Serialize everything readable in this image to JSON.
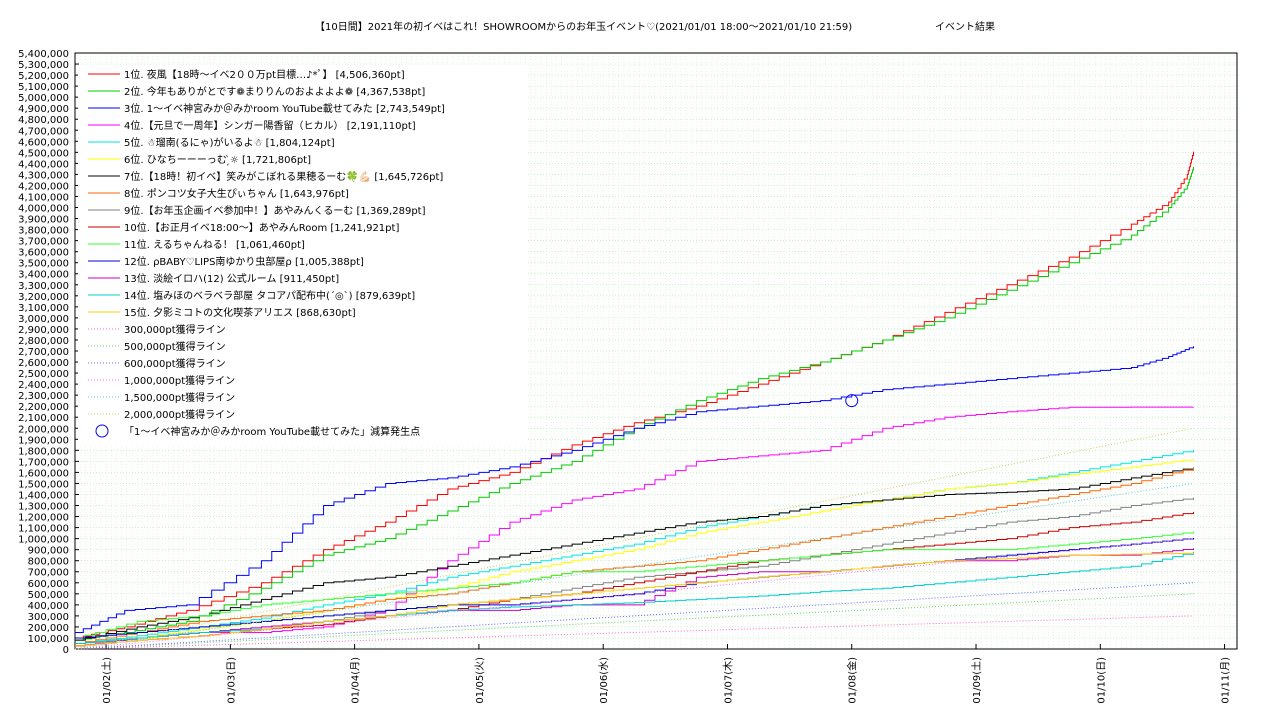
{
  "chart_data": {
    "type": "line",
    "title": "【10日間】2021年の初イベはこれ！SHOWROOMからのお年玉イベント♡(2021/01/01 18:00〜2021/01/10 21:59)",
    "subtitle": "イベント結果",
    "ylim": [
      0,
      5400000
    ],
    "yticks": [
      "0",
      "100,000",
      "200,000",
      "300,000",
      "400,000",
      "500,000",
      "600,000",
      "700,000",
      "800,000",
      "900,000",
      "1,000,000",
      "1,100,000",
      "1,200,000",
      "1,300,000",
      "1,400,000",
      "1,500,000",
      "1,600,000",
      "1,700,000",
      "1,800,000",
      "1,900,000",
      "2,000,000",
      "2,100,000",
      "2,200,000",
      "2,300,000",
      "2,400,000",
      "2,500,000",
      "2,600,000",
      "2,700,000",
      "2,800,000",
      "2,900,000",
      "3,000,000",
      "3,100,000",
      "3,200,000",
      "3,300,000",
      "3,400,000",
      "3,500,000",
      "3,600,000",
      "3,700,000",
      "3,800,000",
      "3,900,000",
      "4,000,000",
      "4,100,000",
      "4,200,000",
      "4,300,000",
      "4,400,000",
      "4,500,000",
      "4,600,000",
      "4,700,000",
      "4,800,000",
      "4,900,000",
      "5,000,000",
      "5,100,000",
      "5,200,000",
      "5,300,000",
      "5,400,000"
    ],
    "xticks": [
      "01/02(土)",
      "01/03(日)",
      "01/04(月)",
      "01/05(火)",
      "01/06(水)",
      "01/07(木)",
      "01/08(金)",
      "01/09(土)",
      "01/10(日)",
      "01/11(月)"
    ],
    "grid": true,
    "legend_position": "top-left",
    "series": [
      {
        "name": "1位. 夜風【18時〜イベ2００万pt目標…♪*ﾟ】 [4,506,360pt]",
        "color": "#ff0000",
        "x": [
          0,
          0.4,
          0.9,
          1.5,
          2.0,
          2.5,
          3.0,
          3.5,
          4.0,
          4.5,
          5.0,
          5.5,
          6.0,
          6.5,
          7.0,
          7.5,
          8.0,
          8.5,
          8.8,
          8.95,
          9.0
        ],
        "y": [
          100000,
          200000,
          350000,
          600000,
          900000,
          1150000,
          1450000,
          1600000,
          1850000,
          2050000,
          2200000,
          2400000,
          2600000,
          2800000,
          3050000,
          3300000,
          3550000,
          3850000,
          4050000,
          4300000,
          4506360
        ]
      },
      {
        "name": "2位. 今年もありがとです❁まりりんのおよよよよ❁ [4,367,538pt]",
        "color": "#00cc00",
        "x": [
          0,
          0.4,
          0.9,
          1.5,
          2.0,
          2.5,
          3.0,
          3.5,
          4.0,
          4.5,
          5.0,
          5.5,
          6.0,
          6.5,
          7.0,
          7.5,
          8.0,
          8.5,
          8.8,
          8.95,
          9.0
        ],
        "y": [
          80000,
          150000,
          250000,
          550000,
          850000,
          1000000,
          1250000,
          1500000,
          1700000,
          2000000,
          2250000,
          2450000,
          2600000,
          2800000,
          3000000,
          3250000,
          3500000,
          3750000,
          4000000,
          4200000,
          4367538
        ]
      },
      {
        "name": "3位. 1〜イベ神宮みか＠みかroom YouTube載せてみた [2,743,549pt]",
        "color": "#0000ff",
        "x": [
          0,
          0.4,
          0.9,
          1.5,
          2.0,
          2.5,
          3.0,
          3.5,
          4.0,
          4.5,
          5.0,
          5.5,
          6.0,
          6.5,
          7.0,
          7.5,
          8.0,
          8.5,
          8.8,
          9.0
        ],
        "y": [
          150000,
          350000,
          400000,
          800000,
          1300000,
          1500000,
          1550000,
          1650000,
          1800000,
          2000000,
          2150000,
          2200000,
          2250000,
          2350000,
          2400000,
          2450000,
          2500000,
          2550000,
          2650000,
          2743549
        ]
      },
      {
        "name": "4位.【元旦で一周年】シンガー陽香留（ヒカル） [2,191,110pt]",
        "color": "#ff00ff",
        "x": [
          0,
          0.5,
          1.0,
          1.5,
          2.0,
          2.5,
          3.0,
          3.5,
          4.0,
          4.5,
          5.0,
          5.5,
          6.0,
          6.5,
          7.0,
          7.5,
          8.0,
          8.5,
          9.0
        ],
        "y": [
          50000,
          100000,
          150000,
          150000,
          200000,
          350000,
          800000,
          1150000,
          1350000,
          1450000,
          1700000,
          1750000,
          1800000,
          2000000,
          2100000,
          2150000,
          2190000,
          2191000,
          2191110
        ]
      },
      {
        "name": "5位. ☃瑠南(るにゃ)がいるよ☃ [1,804,124pt]",
        "color": "#00e5e5",
        "x": [
          0,
          0.5,
          1.0,
          1.5,
          2.0,
          2.5,
          3.0,
          3.5,
          4.0,
          4.5,
          5.0,
          5.5,
          6.0,
          6.5,
          7.0,
          7.5,
          8.0,
          8.5,
          9.0
        ],
        "y": [
          50000,
          120000,
          200000,
          280000,
          400000,
          500000,
          650000,
          750000,
          850000,
          950000,
          1100000,
          1200000,
          1300000,
          1350000,
          1450000,
          1500000,
          1600000,
          1700000,
          1804124
        ]
      },
      {
        "name": "6位. ひなちーーーっむ ̗̀☼ [1,721,806pt]",
        "color": "#ffff00",
        "x": [
          0,
          0.5,
          1.0,
          1.5,
          2.0,
          2.5,
          3.0,
          3.5,
          4.0,
          4.5,
          5.0,
          5.5,
          6.0,
          6.5,
          7.0,
          7.5,
          8.0,
          8.5,
          9.0
        ],
        "y": [
          50000,
          100000,
          180000,
          250000,
          350000,
          450000,
          550000,
          700000,
          800000,
          900000,
          1050000,
          1150000,
          1250000,
          1350000,
          1450000,
          1500000,
          1580000,
          1650000,
          1721806
        ]
      },
      {
        "name": "7位.【18時！初イベ】笑みがこぼれる果穂るーむ🍀💪🏻 [1,645,726pt]",
        "color": "#000000",
        "x": [
          0,
          0.5,
          1.0,
          1.5,
          2.0,
          2.5,
          3.0,
          3.5,
          4.0,
          4.5,
          5.0,
          5.5,
          6.0,
          6.5,
          7.0,
          7.5,
          8.0,
          8.5,
          9.0
        ],
        "y": [
          80000,
          200000,
          300000,
          450000,
          600000,
          650000,
          750000,
          850000,
          950000,
          1050000,
          1150000,
          1200000,
          1300000,
          1350000,
          1400000,
          1420000,
          1450000,
          1550000,
          1645726
        ]
      },
      {
        "name": "8位. ポンコツ女子大生ぴぃちゃん [1,643,976pt]",
        "color": "#ff6600",
        "x": [
          0,
          0.5,
          1.0,
          1.5,
          2.0,
          2.5,
          3.0,
          3.5,
          4.0,
          4.5,
          5.0,
          5.5,
          6.0,
          6.5,
          7.0,
          7.5,
          8.0,
          8.5,
          9.0
        ],
        "y": [
          50000,
          150000,
          250000,
          300000,
          350000,
          450000,
          500000,
          600000,
          700000,
          750000,
          800000,
          900000,
          1000000,
          1100000,
          1200000,
          1300000,
          1400000,
          1500000,
          1643976
        ]
      },
      {
        "name": "9位.【お年玉企画イベ参加中！】あやみんくるーむ [1,369,289pt]",
        "color": "#808080",
        "x": [
          0,
          0.5,
          1.0,
          1.5,
          2.0,
          2.5,
          3.0,
          3.5,
          4.0,
          4.5,
          5.0,
          5.5,
          6.0,
          6.5,
          7.0,
          7.5,
          8.0,
          8.5,
          9.0
        ],
        "y": [
          30000,
          100000,
          150000,
          200000,
          250000,
          350000,
          400000,
          450000,
          550000,
          650000,
          700000,
          750000,
          850000,
          950000,
          1050000,
          1150000,
          1200000,
          1300000,
          1369289
        ]
      },
      {
        "name": "10位.【お正月イベ18:00〜】あやみんRoom [1,241,921pt]",
        "color": "#cc0000",
        "x": [
          0,
          0.5,
          1.0,
          1.5,
          2.0,
          2.5,
          3.0,
          3.5,
          4.0,
          4.5,
          5.0,
          5.5,
          6.0,
          6.5,
          7.0,
          7.5,
          8.0,
          8.5,
          9.0
        ],
        "y": [
          30000,
          80000,
          120000,
          180000,
          220000,
          300000,
          350000,
          450000,
          500000,
          600000,
          700000,
          800000,
          850000,
          900000,
          950000,
          1000000,
          1100000,
          1150000,
          1241921
        ]
      },
      {
        "name": "11位. えるちゃんねる！ [1,061,460pt]",
        "color": "#33ff33",
        "x": [
          0,
          0.5,
          1.0,
          1.5,
          2.0,
          2.5,
          3.0,
          3.5,
          4.0,
          4.5,
          5.0,
          5.5,
          6.0,
          6.5,
          7.0,
          7.5,
          8.0,
          8.5,
          9.0
        ],
        "y": [
          100000,
          250000,
          300000,
          400000,
          450000,
          500000,
          550000,
          600000,
          700000,
          700000,
          750000,
          800000,
          850000,
          900000,
          900000,
          900000,
          950000,
          1000000,
          1061460
        ]
      },
      {
        "name": "12位. ρBABY♡LIPS南ゆかり虫部屋ρ [1,005,388pt]",
        "color": "#0000cc",
        "x": [
          0,
          0.5,
          1.0,
          1.5,
          2.0,
          2.5,
          3.0,
          3.5,
          4.0,
          4.5,
          5.0,
          5.5,
          6.0,
          6.5,
          7.0,
          7.5,
          8.0,
          8.5,
          9.0
        ],
        "y": [
          100000,
          150000,
          200000,
          250000,
          300000,
          350000,
          400000,
          400000,
          450000,
          500000,
          600000,
          650000,
          700000,
          750000,
          800000,
          850000,
          900000,
          950000,
          1005388
        ]
      },
      {
        "name": "13位. 淡絵イロハ(12) 公式ルーム [911,450pt]",
        "color": "#cc00cc",
        "x": [
          0,
          0.5,
          1.0,
          1.5,
          2.0,
          2.5,
          3.0,
          3.5,
          4.0,
          4.5,
          5.0,
          5.5,
          6.0,
          6.5,
          7.0,
          7.5,
          8.0,
          8.5,
          9.0
        ],
        "y": [
          30000,
          100000,
          150000,
          200000,
          250000,
          300000,
          350000,
          350000,
          400000,
          400000,
          650000,
          700000,
          700000,
          750000,
          800000,
          800000,
          850000,
          850000,
          911450
        ]
      },
      {
        "name": "14位. 塩みほのベラベラ部屋 タコアパ配布中(ˊ◎ˋ) [879,639pt]",
        "color": "#00cccc",
        "x": [
          0,
          0.5,
          1.0,
          1.5,
          2.0,
          2.5,
          3.0,
          3.5,
          4.0,
          4.5,
          5.0,
          5.5,
          6.0,
          6.5,
          7.0,
          7.5,
          8.0,
          8.5,
          9.0
        ],
        "y": [
          50000,
          100000,
          150000,
          180000,
          250000,
          300000,
          350000,
          380000,
          400000,
          420000,
          450000,
          480000,
          520000,
          550000,
          600000,
          650000,
          700000,
          750000,
          879639
        ]
      },
      {
        "name": "15位. 夕影ミコトの文化喫茶アリエス [868,630pt]",
        "color": "#ffcc00",
        "x": [
          0,
          0.5,
          1.0,
          1.5,
          2.0,
          2.5,
          3.0,
          3.5,
          4.0,
          4.5,
          5.0,
          5.5,
          6.0,
          6.5,
          7.0,
          7.5,
          8.0,
          8.5,
          9.0
        ],
        "y": [
          30000,
          80000,
          120000,
          180000,
          250000,
          300000,
          400000,
          450000,
          500000,
          550000,
          600000,
          650000,
          700000,
          750000,
          800000,
          820000,
          850000,
          860000,
          868630
        ]
      },
      {
        "name": "300,000pt獲得ライン",
        "color": "#ff66cc",
        "dotted": true,
        "x": [
          0,
          9.0
        ],
        "y": [
          0,
          300000
        ]
      },
      {
        "name": "500,000pt獲得ライン",
        "color": "#66cc66",
        "dotted": true,
        "x": [
          0,
          9.0
        ],
        "y": [
          0,
          500000
        ]
      },
      {
        "name": "600,000pt獲得ライン",
        "color": "#6666ff",
        "dotted": true,
        "x": [
          0,
          9.0
        ],
        "y": [
          0,
          600000
        ]
      },
      {
        "name": "1,000,000pt獲得ライン",
        "color": "#ff66ff",
        "dotted": true,
        "x": [
          0,
          9.0
        ],
        "y": [
          0,
          1000000
        ]
      },
      {
        "name": "1,500,000pt獲得ライン",
        "color": "#66cccc",
        "dotted": true,
        "x": [
          0,
          9.0
        ],
        "y": [
          0,
          1500000
        ]
      },
      {
        "name": "2,000,000pt獲得ライン",
        "color": "#cccc66",
        "dotted": true,
        "x": [
          0,
          9.0
        ],
        "y": [
          0,
          2000000
        ]
      }
    ],
    "annotation": {
      "name": "「1〜イベ神宮みか＠みかroom YouTube載せてみた」減算発生点",
      "color": "#0000ff",
      "x": 6.25,
      "y": 2250000
    }
  }
}
